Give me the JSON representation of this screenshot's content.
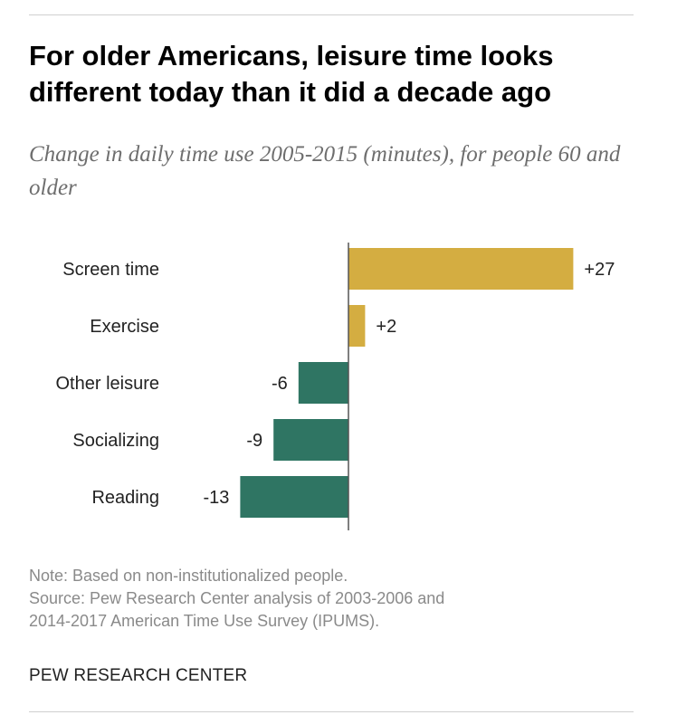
{
  "header": {
    "title": "For older Americans, leisure time looks different today than it did a decade ago",
    "subtitle": "Change in daily time use 2005-2015 (minutes), for people 60 and older"
  },
  "chart_data": {
    "type": "bar",
    "orientation": "horizontal",
    "categories": [
      "Screen time",
      "Exercise",
      "Other leisure",
      "Socializing",
      "Reading"
    ],
    "values": [
      27,
      2,
      -6,
      -9,
      -13
    ],
    "value_labels": [
      "+27",
      "+2",
      "-6",
      "-9",
      "-13"
    ],
    "colors": {
      "positive": "#d4ad41",
      "negative": "#2f7563"
    },
    "xlim": [
      -13,
      27
    ],
    "grid": false,
    "legend": "none"
  },
  "footer": {
    "note": "Note: Based on non-institutionalized people.",
    "source_line1": "Source: Pew Research Center analysis of 2003-2006 and",
    "source_line2": "2014-2017 American Time Use Survey (IPUMS).",
    "brand": "PEW RESEARCH CENTER"
  }
}
